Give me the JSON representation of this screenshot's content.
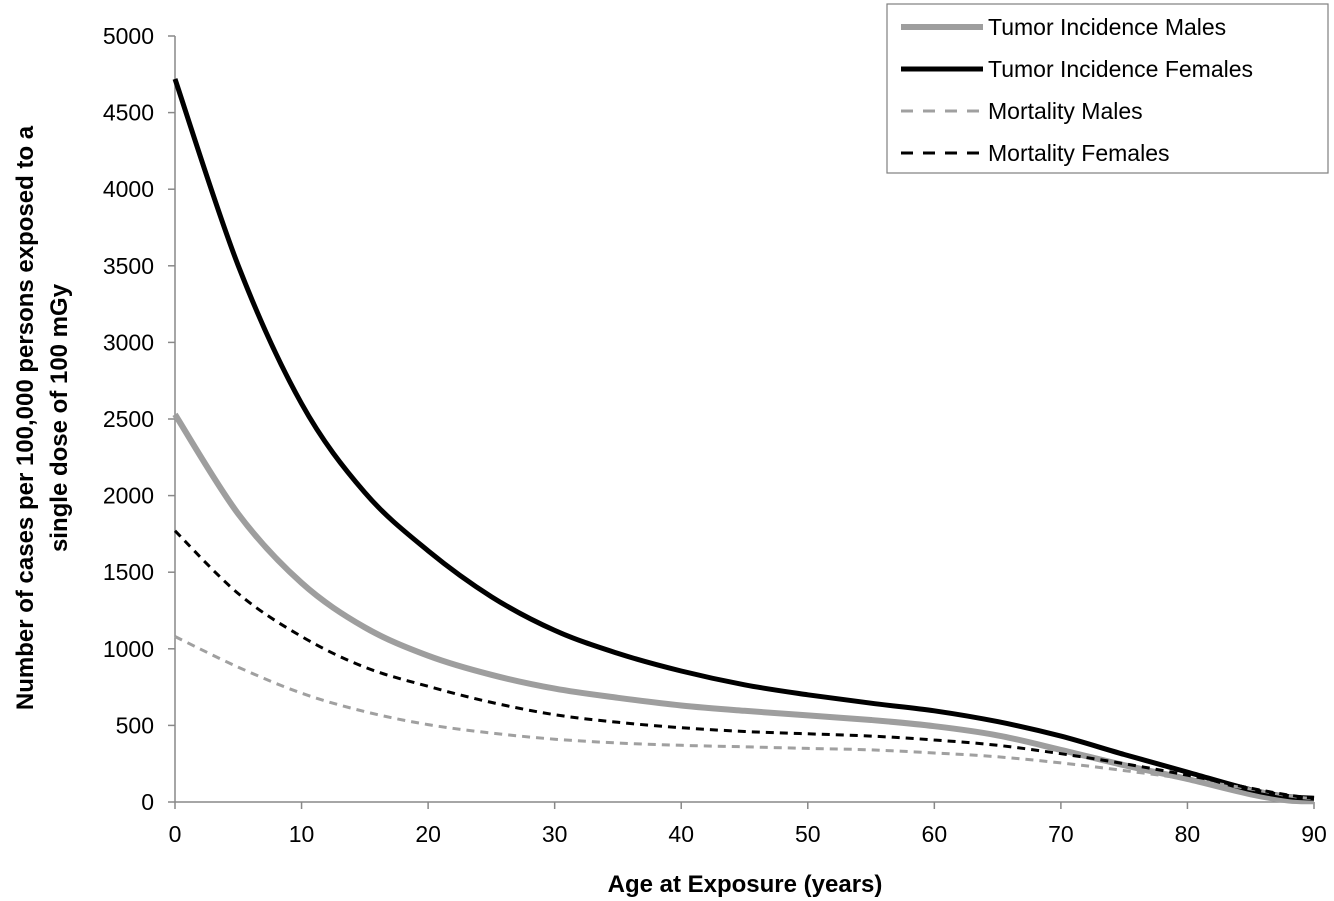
{
  "chart_data": {
    "type": "line",
    "title": "",
    "xlabel": "Age at Exposure (years)",
    "ylabel": [
      "Number of cases per 100,000 persons exposed to a",
      "single dose of 100 mGy"
    ],
    "xlim": [
      0,
      90
    ],
    "ylim": [
      0,
      5000
    ],
    "x_ticks": [
      0,
      10,
      20,
      30,
      40,
      50,
      60,
      70,
      80,
      90
    ],
    "y_ticks": [
      0,
      500,
      1000,
      1500,
      2000,
      2500,
      3000,
      3500,
      4000,
      4500,
      5000
    ],
    "grid": false,
    "legend_position": "top-right",
    "series": [
      {
        "name": "Tumor Incidence Males",
        "color": "#9e9e9e",
        "style": "solid-thick",
        "x": [
          0,
          5,
          10,
          15,
          20,
          25,
          30,
          35,
          40,
          45,
          50,
          55,
          60,
          65,
          70,
          75,
          80,
          85,
          88,
          90
        ],
        "values": [
          2530,
          1880,
          1430,
          1140,
          955,
          830,
          740,
          680,
          630,
          595,
          565,
          535,
          495,
          435,
          340,
          240,
          150,
          50,
          10,
          5
        ]
      },
      {
        "name": "Tumor Incidence Females",
        "color": "#000000",
        "style": "solid-thick",
        "x": [
          0,
          5,
          10,
          15,
          20,
          25,
          30,
          35,
          40,
          45,
          50,
          55,
          60,
          65,
          70,
          75,
          80,
          85,
          88,
          90
        ],
        "values": [
          4720,
          3500,
          2600,
          2020,
          1640,
          1340,
          1120,
          970,
          855,
          765,
          700,
          645,
          595,
          525,
          430,
          310,
          195,
          80,
          35,
          25
        ]
      },
      {
        "name": "Mortality Males",
        "color": "#a0a0a0",
        "style": "dashed",
        "x": [
          0,
          5,
          10,
          15,
          20,
          25,
          30,
          35,
          40,
          45,
          50,
          55,
          60,
          65,
          70,
          75,
          80,
          85,
          88,
          90
        ],
        "values": [
          1080,
          880,
          710,
          590,
          505,
          450,
          410,
          385,
          370,
          360,
          350,
          340,
          320,
          295,
          255,
          205,
          150,
          85,
          40,
          20
        ]
      },
      {
        "name": "Mortality Females",
        "color": "#000000",
        "style": "dashed",
        "x": [
          0,
          5,
          10,
          15,
          20,
          25,
          30,
          35,
          40,
          45,
          50,
          55,
          60,
          65,
          70,
          75,
          80,
          85,
          88,
          90
        ],
        "values": [
          1770,
          1360,
          1080,
          880,
          755,
          650,
          570,
          520,
          485,
          460,
          445,
          430,
          405,
          370,
          315,
          250,
          175,
          90,
          45,
          25
        ]
      }
    ]
  }
}
